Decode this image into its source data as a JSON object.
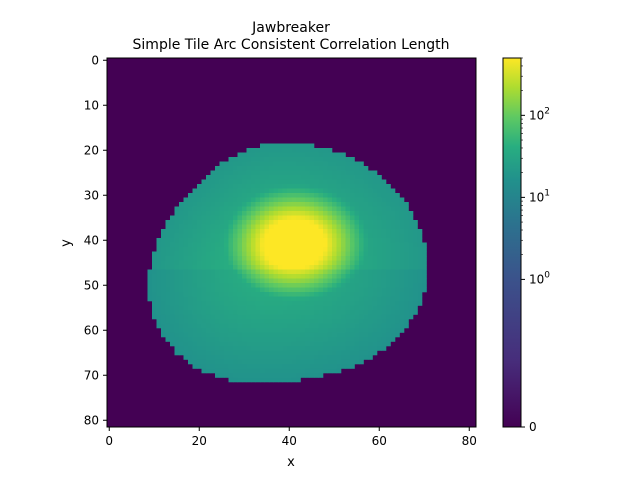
{
  "chart_data": {
    "type": "heatmap",
    "title": "Jawbreaker",
    "subtitle": "Simple Tile Arc Consistent Correlation Length",
    "xlabel": "x",
    "ylabel": "y",
    "x_range": [
      0,
      82
    ],
    "y_range": [
      82,
      0
    ],
    "x_ticks": [
      "0",
      "20",
      "40",
      "60",
      "80"
    ],
    "y_ticks": [
      "0",
      "10",
      "20",
      "30",
      "40",
      "50",
      "60",
      "70",
      "80"
    ],
    "colormap": "viridis",
    "color_scale": "symlog",
    "color_range": [
      0,
      500
    ],
    "colorbar_ticks": [
      {
        "base": "0",
        "exp": ""
      },
      {
        "base": "10",
        "exp": "0"
      },
      {
        "base": "10",
        "exp": "1"
      },
      {
        "base": "10",
        "exp": "2"
      }
    ],
    "grid": false,
    "blob": {
      "description_free": true,
      "nonzero_rows": [
        17,
        70
      ],
      "nonzero_cols": [
        7,
        71
      ],
      "peak_value": 500,
      "peak_center": [
        42,
        41
      ],
      "edge_value": 20
    }
  }
}
